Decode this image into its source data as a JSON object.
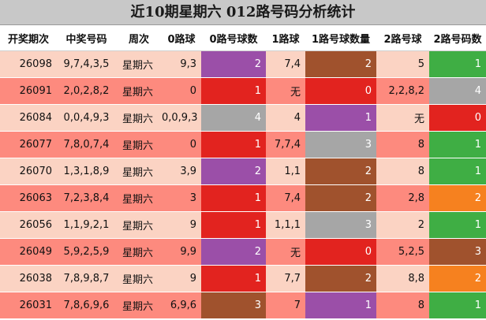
{
  "title": "近10期星期六 012路号码分析统计",
  "colors": {
    "row_light": "#fbd3c3",
    "row_dark": "#fd8a7e",
    "purple": "#9b4fa8",
    "red": "#e2231f",
    "gray": "#a6a6a6",
    "brown": "#a0522d",
    "green": "#3fae44",
    "orange": "#f6811f"
  },
  "headers": [
    "开奖期次",
    "中奖号码",
    "周次",
    "0路球",
    "0路号球数",
    "1路球",
    "1路号球数量",
    "2路号球",
    "2路号码数"
  ],
  "rows": [
    {
      "period": "26098",
      "numbers": "9,7,4,3,5",
      "weekday": "星期六",
      "road0": "9,3",
      "road0_count": "2",
      "road0_color": "purple",
      "road1": "7,4",
      "road1_count": "2",
      "road1_color": "brown",
      "road2": "5",
      "road2_count": "1",
      "road2_color": "green"
    },
    {
      "period": "26091",
      "numbers": "2,0,2,8,2",
      "weekday": "星期六",
      "road0": "0",
      "road0_count": "1",
      "road0_color": "red",
      "road1": "无",
      "road1_count": "0",
      "road1_color": "red",
      "road2": "2,2,8,2",
      "road2_count": "4",
      "road2_color": "gray"
    },
    {
      "period": "26084",
      "numbers": "0,0,4,9,3",
      "weekday": "星期六",
      "road0": "0,0,9,3",
      "road0_count": "4",
      "road0_color": "gray",
      "road1": "4",
      "road1_count": "1",
      "road1_color": "purple",
      "road2": "无",
      "road2_count": "0",
      "road2_color": "red"
    },
    {
      "period": "26077",
      "numbers": "7,8,0,7,4",
      "weekday": "星期六",
      "road0": "0",
      "road0_count": "1",
      "road0_color": "red",
      "road1": "7,7,4",
      "road1_count": "3",
      "road1_color": "gray",
      "road2": "8",
      "road2_count": "1",
      "road2_color": "green"
    },
    {
      "period": "26070",
      "numbers": "1,3,1,8,9",
      "weekday": "星期六",
      "road0": "3,9",
      "road0_count": "2",
      "road0_color": "purple",
      "road1": "1,1",
      "road1_count": "2",
      "road1_color": "brown",
      "road2": "8",
      "road2_count": "1",
      "road2_color": "green"
    },
    {
      "period": "26063",
      "numbers": "7,2,3,8,4",
      "weekday": "星期六",
      "road0": "3",
      "road0_count": "1",
      "road0_color": "red",
      "road1": "7,4",
      "road1_count": "2",
      "road1_color": "brown",
      "road2": "2,8",
      "road2_count": "2",
      "road2_color": "orange"
    },
    {
      "period": "26056",
      "numbers": "1,1,9,2,1",
      "weekday": "星期六",
      "road0": "9",
      "road0_count": "1",
      "road0_color": "red",
      "road1": "1,1,1",
      "road1_count": "3",
      "road1_color": "gray",
      "road2": "2",
      "road2_count": "1",
      "road2_color": "green"
    },
    {
      "period": "26049",
      "numbers": "5,9,2,5,9",
      "weekday": "星期六",
      "road0": "9,9",
      "road0_count": "2",
      "road0_color": "purple",
      "road1": "无",
      "road1_count": "0",
      "road1_color": "red",
      "road2": "5,2,5",
      "road2_count": "3",
      "road2_color": "brown"
    },
    {
      "period": "26038",
      "numbers": "7,8,9,8,7",
      "weekday": "星期六",
      "road0": "9",
      "road0_count": "1",
      "road0_color": "red",
      "road1": "7,7",
      "road1_count": "2",
      "road1_color": "brown",
      "road2": "8,8",
      "road2_count": "2",
      "road2_color": "orange"
    },
    {
      "period": "26031",
      "numbers": "7,8,6,9,6",
      "weekday": "星期六",
      "road0": "6,9,6",
      "road0_count": "3",
      "road0_color": "brown",
      "road1": "7",
      "road1_count": "1",
      "road1_color": "purple",
      "road2": "8",
      "road2_count": "1",
      "road2_color": "green"
    }
  ]
}
